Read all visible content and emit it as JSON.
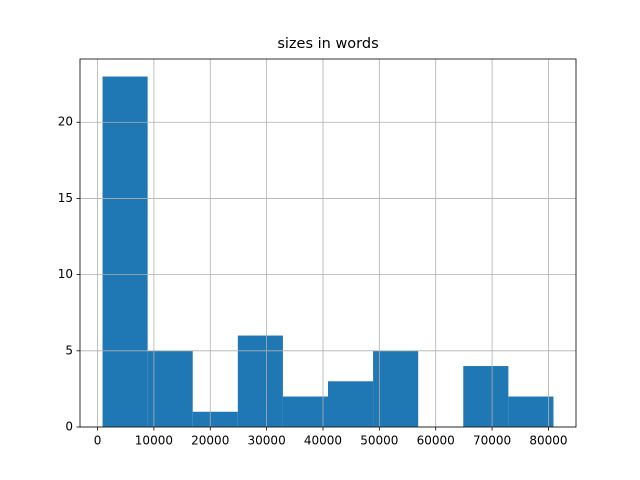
{
  "chart_data": {
    "type": "histogram",
    "title": "sizes in words",
    "bins": [
      889,
      8889,
      16889,
      24889,
      32889,
      40889,
      48889,
      56889,
      64889,
      72889,
      80889
    ],
    "values": [
      23,
      5,
      1,
      6,
      2,
      3,
      5,
      0,
      4,
      2
    ],
    "color": "#1f77b4",
    "xlim": [
      -3111,
      84889
    ],
    "xticks": [
      0,
      10000,
      20000,
      30000,
      40000,
      50000,
      60000,
      70000,
      80000
    ],
    "ylim": [
      0,
      24.15
    ],
    "yticks": [
      0,
      5,
      10,
      15,
      20
    ],
    "grid": true
  }
}
